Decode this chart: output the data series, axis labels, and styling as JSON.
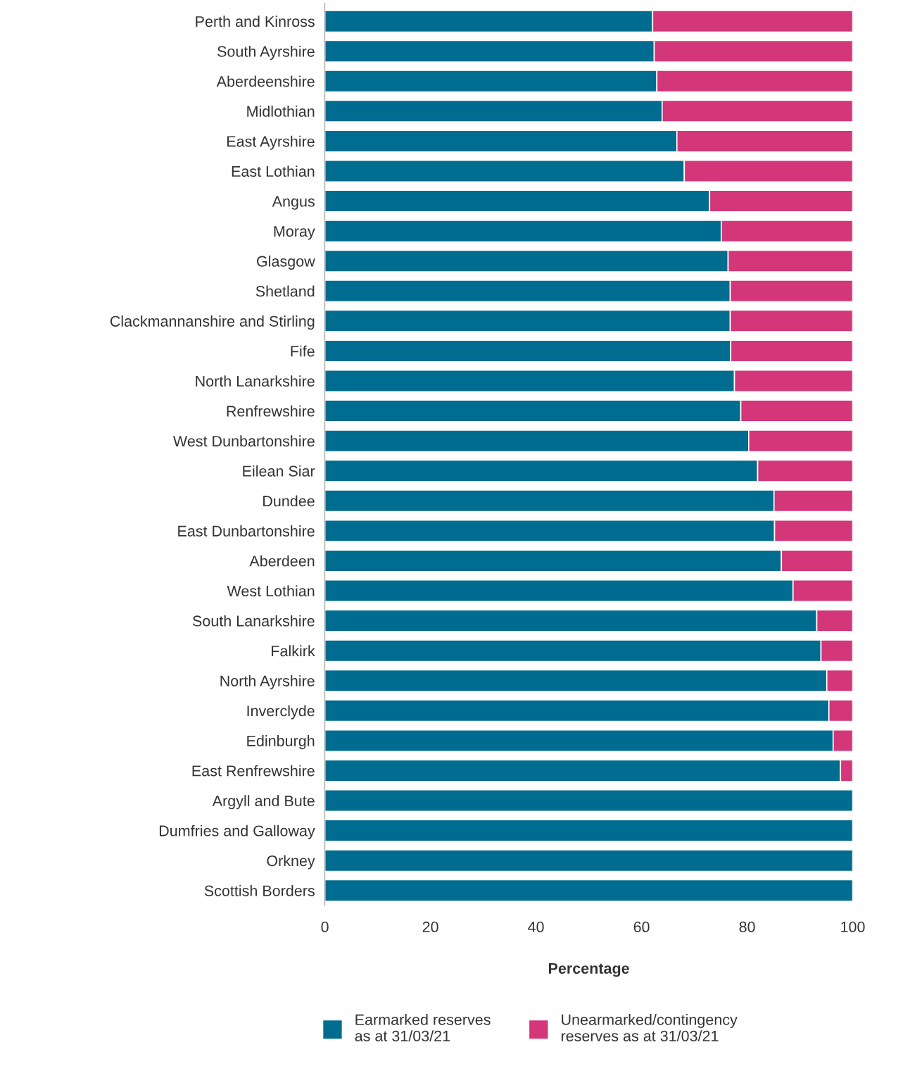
{
  "chart_data": {
    "type": "bar",
    "orientation": "horizontal",
    "stacked": true,
    "xlabel": "Percentage",
    "categories": [
      "Perth and Kinross",
      "South Ayrshire",
      "Aberdeenshire",
      "Midlothian",
      "East Ayrshire",
      "East Lothian",
      "Angus",
      "Moray",
      "Glasgow",
      "Shetland",
      "Clackmannanshire and Stirling",
      "Fife",
      "North Lanarkshire",
      "Renfrewshire",
      "West Dunbartonshire",
      "Eilean Siar",
      "Dundee",
      "East Dunbartonshire",
      "Aberdeen",
      "West Lothian",
      "South Lanarkshire",
      "Falkirk",
      "North Ayrshire",
      "Inverclyde",
      "Edinburgh",
      "East Renfrewshire",
      "Argyll and Bute",
      "Dumfries and Galloway",
      "Orkney",
      "Scottish Borders"
    ],
    "series": [
      {
        "name": "Earmarked reserves\nas at 31/03/21",
        "color": "#006c8f",
        "values": [
          62.1,
          62.4,
          62.9,
          63.9,
          66.7,
          68.1,
          72.9,
          75.1,
          76.4,
          76.8,
          76.8,
          76.9,
          77.6,
          78.8,
          80.3,
          82.0,
          85.1,
          85.2,
          86.5,
          88.7,
          93.2,
          94.0,
          95.1,
          95.5,
          96.3,
          97.7,
          100,
          100,
          100,
          100
        ]
      },
      {
        "name": "Unearmarked/contingency\nreserves as at 31/03/21",
        "color": "#d33679",
        "values": [
          37.9,
          37.6,
          37.1,
          36.1,
          33.3,
          31.9,
          27.1,
          24.9,
          23.6,
          23.2,
          23.2,
          23.1,
          22.4,
          21.2,
          19.7,
          18.0,
          14.9,
          14.8,
          13.5,
          11.3,
          6.8,
          6.0,
          4.9,
          4.5,
          3.7,
          2.3,
          0,
          0,
          0,
          0
        ]
      }
    ],
    "xlim": [
      0,
      100
    ],
    "xticks": [
      0,
      20,
      40,
      60,
      80,
      100
    ],
    "grid": false,
    "legend": "bottom"
  }
}
